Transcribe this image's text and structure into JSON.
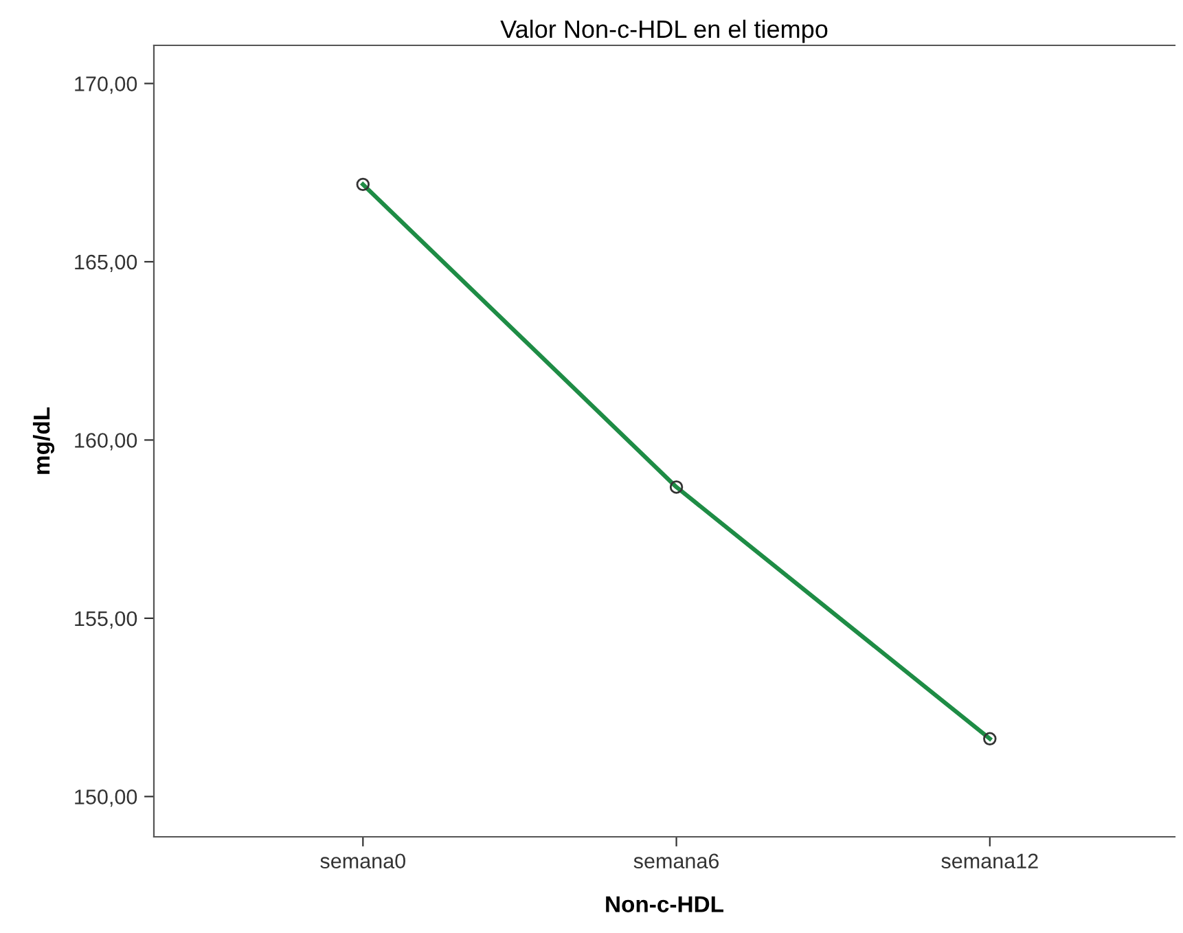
{
  "chart_data": {
    "type": "line",
    "title": "Valor Non-c-HDL en el tiempo",
    "xlabel": "Non-c-HDL",
    "ylabel": "mg/dL",
    "categories": [
      "semana0",
      "semana6",
      "semana12"
    ],
    "series": [
      {
        "color": "#1e8c45",
        "values": [
          167.17,
          158.68,
          151.62
        ]
      }
    ],
    "ylim": [
      148.87,
      171.07
    ],
    "yticks": [
      {
        "value": 150,
        "label": "150,00"
      },
      {
        "value": 155,
        "label": "155,00"
      },
      {
        "value": 160,
        "label": "160,00"
      },
      {
        "value": 165,
        "label": "165,00"
      },
      {
        "value": 170,
        "label": "170,00"
      }
    ],
    "grid": false,
    "marker": "circle",
    "line_style": "solid"
  }
}
